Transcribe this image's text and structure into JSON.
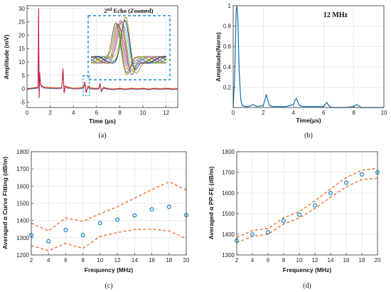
{
  "chart_data": [
    {
      "panel": "a",
      "type": "line",
      "caption": "(a)",
      "xlabel": "Time (μs)",
      "ylabel": "Amplitude (mV)",
      "xlim": [
        0,
        13
      ],
      "ylim": [
        -7,
        31
      ],
      "xticks": [
        0,
        2,
        4,
        6,
        8,
        10,
        12
      ],
      "yticks": [
        -5,
        0,
        5,
        10,
        15,
        20,
        25,
        30
      ],
      "grid": true,
      "inset_title": "2nd Echo (Zoomed)",
      "inset_title_sup": "nd",
      "series": [
        {
          "color": "#c0143c",
          "x": [
            0.0,
            0.5,
            0.95,
            1.0,
            1.05,
            1.1,
            1.15,
            1.25,
            1.5,
            2.0,
            2.6,
            3.0,
            3.1,
            3.2,
            3.3,
            3.5,
            4.0,
            4.6,
            4.9,
            5.0,
            5.1,
            5.25,
            5.5,
            6.0,
            6.2,
            6.3,
            6.4,
            6.6,
            7.0,
            7.5,
            8.0,
            8.5,
            9.0,
            9.5,
            10.0,
            10.5,
            11.0,
            11.5,
            12.0,
            12.5,
            13.0
          ],
          "y": [
            0.0,
            0.2,
            0.5,
            30.0,
            -3.5,
            6.0,
            2.0,
            1.0,
            0.5,
            0.3,
            0.2,
            0.3,
            7.5,
            -1.5,
            1.0,
            0.5,
            0.1,
            0.2,
            0.6,
            2.5,
            -1.5,
            0.8,
            0.2,
            0.0,
            0.2,
            2.0,
            -1.0,
            0.4,
            0.0,
            -0.2,
            0.1,
            -0.2,
            0.1,
            -0.1,
            0.1,
            -0.2,
            0.1,
            -0.1,
            0.1,
            -0.1,
            0.0
          ]
        }
      ],
      "inset_series_count": 12,
      "inset_colors": [
        "#1f77b4",
        "#ff7f0e",
        "#2ca02c",
        "#d62728",
        "#9467bd",
        "#8c564b",
        "#e377c2",
        "#7f7f7f",
        "#bcbd22",
        "#17becf",
        "#000080",
        "#808000"
      ]
    },
    {
      "panel": "b",
      "type": "line",
      "caption": "(b)",
      "xlabel": "Time(μs)",
      "ylabel": "Amplitude(Norm)",
      "xlim": [
        0,
        10
      ],
      "ylim": [
        0,
        1
      ],
      "xticks": [
        0,
        2,
        4,
        6,
        8,
        10
      ],
      "yticks": [
        0.2,
        0.4,
        0.6,
        0.8,
        1
      ],
      "ytick_labels": [
        "0.2",
        "0.4",
        "0.6",
        "0.8",
        "1"
      ],
      "grid": true,
      "annotation": "12 MHz",
      "series": [
        {
          "color": "#0c6eb0",
          "x": [
            0.0,
            0.1,
            0.2,
            0.25,
            0.3,
            0.4,
            0.5,
            0.6,
            0.8,
            1.0,
            1.2,
            1.3,
            1.4,
            1.6,
            2.0,
            2.1,
            2.2,
            2.3,
            2.4,
            2.6,
            3.0,
            3.5,
            4.0,
            4.1,
            4.2,
            4.3,
            4.4,
            4.6,
            5.0,
            5.5,
            6.0,
            6.1,
            6.2,
            6.3,
            6.4,
            6.6,
            7.0,
            7.5,
            8.0,
            8.1,
            8.2,
            8.3,
            8.5,
            9.0,
            9.5,
            10.0
          ],
          "y": [
            0.0,
            0.3,
            0.95,
            1.0,
            0.9,
            0.35,
            0.08,
            0.02,
            0.01,
            0.01,
            0.02,
            0.03,
            0.02,
            0.01,
            0.02,
            0.07,
            0.13,
            0.07,
            0.02,
            0.01,
            0.01,
            0.01,
            0.03,
            0.07,
            0.09,
            0.05,
            0.02,
            0.01,
            0.01,
            0.01,
            0.01,
            0.03,
            0.05,
            0.03,
            0.01,
            0.0,
            0.0,
            0.0,
            0.01,
            0.02,
            0.03,
            0.02,
            0.0,
            0.0,
            0.0,
            0.0
          ]
        }
      ]
    },
    {
      "panel": "c",
      "type": "scatter",
      "caption": "(c)",
      "xlabel": "Frequency (MHz)",
      "ylabel": "Averaged α Curve Fitting (dB/m)",
      "xlim": [
        2,
        20
      ],
      "ylim": [
        1200,
        1800
      ],
      "xticks": [
        2,
        4,
        6,
        8,
        10,
        12,
        14,
        16,
        18,
        20
      ],
      "yticks": [
        1200,
        1300,
        1400,
        1500,
        1600,
        1700,
        1800
      ],
      "grid": true,
      "x": [
        2,
        4,
        6,
        8,
        10,
        12,
        14,
        16,
        18,
        20
      ],
      "mean": [
        1315,
        1280,
        1345,
        1315,
        1385,
        1405,
        1430,
        1465,
        1480,
        1432
      ],
      "upper": [
        1385,
        1340,
        1415,
        1395,
        1440,
        1480,
        1530,
        1580,
        1625,
        1578
      ],
      "lower": [
        1255,
        1225,
        1268,
        1238,
        1308,
        1330,
        1348,
        1350,
        1340,
        1295
      ],
      "marker_color": "#1b8ccf",
      "band_color": "#f0641e"
    },
    {
      "panel": "d",
      "type": "scatter",
      "caption": "(d)",
      "xlabel": "Frequency (MHz)",
      "ylabel": "Averaged α PP-FE (dB/m)",
      "xlim": [
        2,
        20
      ],
      "ylim": [
        1300,
        1800
      ],
      "xticks": [
        2,
        4,
        6,
        8,
        10,
        12,
        14,
        16,
        18,
        20
      ],
      "yticks": [
        1300,
        1400,
        1500,
        1600,
        1700,
        1800
      ],
      "grid": true,
      "x": [
        2,
        4,
        6,
        8,
        10,
        12,
        14,
        16,
        18,
        20
      ],
      "mean": [
        1370,
        1400,
        1410,
        1465,
        1495,
        1540,
        1600,
        1650,
        1690,
        1700
      ],
      "upper": [
        1385,
        1418,
        1428,
        1480,
        1510,
        1562,
        1620,
        1675,
        1710,
        1720
      ],
      "lower": [
        1360,
        1390,
        1400,
        1450,
        1480,
        1525,
        1580,
        1630,
        1665,
        1672
      ],
      "marker_color": "#1b8ccf",
      "band_color": "#f0641e"
    }
  ]
}
